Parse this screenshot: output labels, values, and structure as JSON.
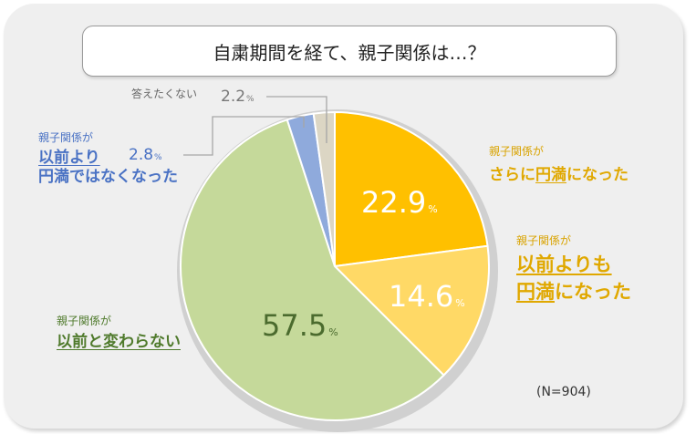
{
  "title": "自粛期間を経て、親子関係は…？",
  "sample_note": "(N=904)",
  "chart_data": {
    "type": "pie",
    "title": "自粛期間を経て、親子関係は…？",
    "unit": "%",
    "slices": [
      {
        "label": "親子関係がさらに円満になった",
        "value": 22.9,
        "color": "#ffc000"
      },
      {
        "label": "親子関係が以前よりも円満になった",
        "value": 14.6,
        "color": "#ffd966"
      },
      {
        "label": "親子関係が以前と変わらない",
        "value": 57.5,
        "color": "#c5d99a"
      },
      {
        "label": "親子関係が以前より円満ではなくなった",
        "value": 2.8,
        "color": "#8faadc"
      },
      {
        "label": "答えたくない",
        "value": 2.2,
        "color": "#dcd6c4"
      }
    ]
  },
  "labels": {
    "s1": {
      "line1": "親子関係が",
      "line2a": "さらに",
      "line2b": "円満",
      "line2c": "になった",
      "value": "22.9",
      "unit": "%"
    },
    "s2": {
      "line1": "親子関係が",
      "line2": "以前よりも",
      "line3a": "円満",
      "line3b": "になった",
      "value": "14.6",
      "unit": "%"
    },
    "s3": {
      "line1": "親子関係が",
      "line2": "以前と変わらない",
      "value": "57.5",
      "unit": "%"
    },
    "s4": {
      "line1": "親子関係が",
      "line2": "以前より",
      "line3": "円満ではなくなった",
      "value": "2.8",
      "unit": "%"
    },
    "s5": {
      "text": "答えたくない",
      "value": "2.2",
      "unit": "%"
    }
  }
}
